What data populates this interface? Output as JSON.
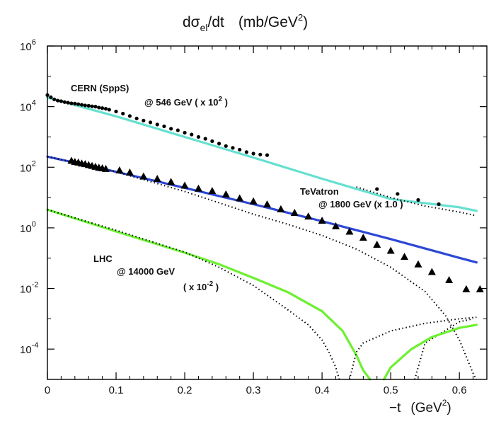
{
  "chart_data": {
    "type": "line",
    "title": {
      "main": "dσ",
      "sub": "el",
      "rest": "/dt",
      "unit": "(mb/GeV",
      "sup": "2",
      "close": ")"
    },
    "xlabel": {
      "main": "−t",
      "unit": "(GeV",
      "sup": "2",
      "close": ")"
    },
    "xlim": [
      0,
      0.64
    ],
    "ylim_log10": [
      -5,
      6
    ],
    "x_ticks": [
      {
        "v": 0,
        "label": "0"
      },
      {
        "v": 0.1,
        "label": "0.1"
      },
      {
        "v": 0.2,
        "label": "0.2"
      },
      {
        "v": 0.3,
        "label": "0.3"
      },
      {
        "v": 0.4,
        "label": "0.4"
      },
      {
        "v": 0.5,
        "label": "0.5"
      },
      {
        "v": 0.6,
        "label": "0.6"
      }
    ],
    "y_ticks": [
      {
        "exp": 6,
        "base": "10",
        "sup": "6"
      },
      {
        "exp": 4,
        "base": "10",
        "sup": "4"
      },
      {
        "exp": 2,
        "base": "10",
        "sup": "2"
      },
      {
        "exp": 0,
        "base": "10",
        "sup": "0"
      },
      {
        "exp": -2,
        "base": "10",
        "sup": "-2"
      },
      {
        "exp": -4,
        "base": "10",
        "sup": "-4"
      }
    ],
    "annotations": {
      "cern": "CERN   (SppS)",
      "cern_energy": "@ 546 GeV ( x 10",
      "cern_energy_sup": "2",
      "cern_energy_close": " )",
      "tevatron": "TeVatron",
      "tevatron_energy": "@ 1800 GeV (x 1.0 )",
      "lhc": "LHC",
      "lhc_energy": "@ 14000  GeV",
      "lhc_scale": "( x 10",
      "lhc_scale_sup": "-2",
      "lhc_scale_close": " )"
    },
    "colors": {
      "cern": "#66e0d0",
      "tevatron": "#2d47d6",
      "lhc": "#6cf030",
      "dotted": "#000000"
    },
    "series": [
      {
        "name": "CERN model",
        "style": "solid",
        "color": "#66e0d0",
        "x": [
          0,
          0.1,
          0.2,
          0.3,
          0.4,
          0.5,
          0.6,
          0.625
        ],
        "log10y": [
          4.3,
          3.68,
          3.0,
          2.32,
          1.62,
          0.95,
          0.68,
          0.56
        ]
      },
      {
        "name": "CERN alternative",
        "style": "dotted",
        "color": "#000000",
        "x": [
          0.45,
          0.5,
          0.55,
          0.6,
          0.625
        ],
        "log10y": [
          1.35,
          1.0,
          0.72,
          0.52,
          0.4
        ]
      },
      {
        "name": "TeVatron model",
        "style": "solid",
        "color": "#2d47d6",
        "x": [
          0,
          0.1,
          0.2,
          0.3,
          0.4,
          0.5,
          0.6,
          0.625
        ],
        "log10y": [
          2.35,
          1.85,
          1.32,
          0.78,
          0.22,
          -0.37,
          -0.99,
          -1.14
        ]
      },
      {
        "name": "TeVatron alternative",
        "style": "dotted",
        "color": "#000000",
        "x": [
          0,
          0.1,
          0.2,
          0.3,
          0.35,
          0.4,
          0.45,
          0.5,
          0.55,
          0.58,
          0.6,
          0.62,
          0.625
        ],
        "log10y": [
          2.35,
          1.85,
          1.2,
          0.45,
          0.12,
          -0.25,
          -0.7,
          -1.3,
          -2.1,
          -2.9,
          -3.7,
          -4.8,
          -5.0
        ]
      },
      {
        "name": "TeVatron alternative (branch)",
        "style": "dotted",
        "color": "#000000",
        "x": [
          0.535,
          0.55,
          0.6,
          0.62
        ],
        "log10y": [
          -5.0,
          -3.8,
          -3.1,
          -3.0
        ]
      },
      {
        "name": "LHC model",
        "style": "solid",
        "color": "#6cf030",
        "x": [
          0,
          0.1,
          0.2,
          0.25,
          0.3,
          0.35,
          0.4,
          0.43,
          0.45,
          0.46,
          0.47
        ],
        "log10y": [
          0.6,
          -0.12,
          -0.82,
          -1.2,
          -1.65,
          -2.12,
          -2.75,
          -3.4,
          -4.2,
          -4.7,
          -5.0
        ]
      },
      {
        "name": "LHC model (branch)",
        "style": "solid",
        "color": "#6cf030",
        "x": [
          0.49,
          0.5,
          0.53,
          0.56,
          0.6,
          0.625
        ],
        "log10y": [
          -5.0,
          -4.6,
          -4.0,
          -3.6,
          -3.3,
          -3.2
        ]
      },
      {
        "name": "LHC alternative",
        "style": "dotted",
        "color": "#000000",
        "x": [
          0,
          0.1,
          0.2,
          0.25,
          0.3,
          0.35,
          0.38,
          0.4,
          0.41,
          0.42,
          0.425
        ],
        "log10y": [
          0.6,
          -0.08,
          -0.8,
          -1.3,
          -1.9,
          -2.7,
          -3.2,
          -3.7,
          -4.1,
          -4.6,
          -5.0
        ]
      },
      {
        "name": "LHC alternative (branch)",
        "style": "dotted",
        "color": "#000000",
        "x": [
          0.44,
          0.45,
          0.46,
          0.48,
          0.5,
          0.55,
          0.6,
          0.625
        ],
        "log10y": [
          -5.0,
          -4.1,
          -3.8,
          -3.6,
          -3.4,
          -3.15,
          -3.0,
          -2.95
        ]
      }
    ],
    "cern_data": {
      "marker": "dot",
      "x": [
        0.0,
        0.005,
        0.01,
        0.015,
        0.02,
        0.025,
        0.03,
        0.035,
        0.04,
        0.045,
        0.05,
        0.055,
        0.06,
        0.065,
        0.07,
        0.075,
        0.08,
        0.085,
        0.09,
        0.1,
        0.11,
        0.12,
        0.13,
        0.14,
        0.15,
        0.16,
        0.17,
        0.18,
        0.19,
        0.2,
        0.21,
        0.22,
        0.23,
        0.24,
        0.25,
        0.26,
        0.27,
        0.28,
        0.29,
        0.3,
        0.31,
        0.32,
        0.48,
        0.51,
        0.54,
        0.57
      ],
      "log10y": [
        4.38,
        4.31,
        4.24,
        4.2,
        4.18,
        4.15,
        4.13,
        4.11,
        4.1,
        4.08,
        4.06,
        4.04,
        4.03,
        4.01,
        4.0,
        3.97,
        3.95,
        3.93,
        3.9,
        3.84,
        3.77,
        3.69,
        3.61,
        3.54,
        3.48,
        3.41,
        3.35,
        3.27,
        3.22,
        3.14,
        3.08,
        3.0,
        2.94,
        2.86,
        2.78,
        2.7,
        2.64,
        2.58,
        2.5,
        2.45,
        2.42,
        2.4,
        1.28,
        1.12,
        0.92,
        0.78
      ]
    },
    "tevatron_data": {
      "marker": "triangle",
      "x": [
        0.035,
        0.04,
        0.045,
        0.05,
        0.055,
        0.06,
        0.065,
        0.07,
        0.075,
        0.08,
        0.085,
        0.105,
        0.12,
        0.14,
        0.16,
        0.18,
        0.2,
        0.22,
        0.24,
        0.26,
        0.28,
        0.3,
        0.32,
        0.34,
        0.36,
        0.38,
        0.4,
        0.42,
        0.44,
        0.46,
        0.48,
        0.5,
        0.52,
        0.54,
        0.56,
        0.585,
        0.61,
        0.63
      ],
      "log10y": [
        2.22,
        2.18,
        2.16,
        2.13,
        2.11,
        2.08,
        2.05,
        2.02,
        1.99,
        1.97,
        1.95,
        1.9,
        1.83,
        1.7,
        1.62,
        1.52,
        1.4,
        1.3,
        1.22,
        1.11,
        0.98,
        0.88,
        0.78,
        0.62,
        0.5,
        0.38,
        0.24,
        0.06,
        -0.12,
        -0.32,
        -0.55,
        -0.75,
        -0.95,
        -1.2,
        -1.45,
        -1.72,
        -2.02,
        -2.02
      ]
    }
  }
}
